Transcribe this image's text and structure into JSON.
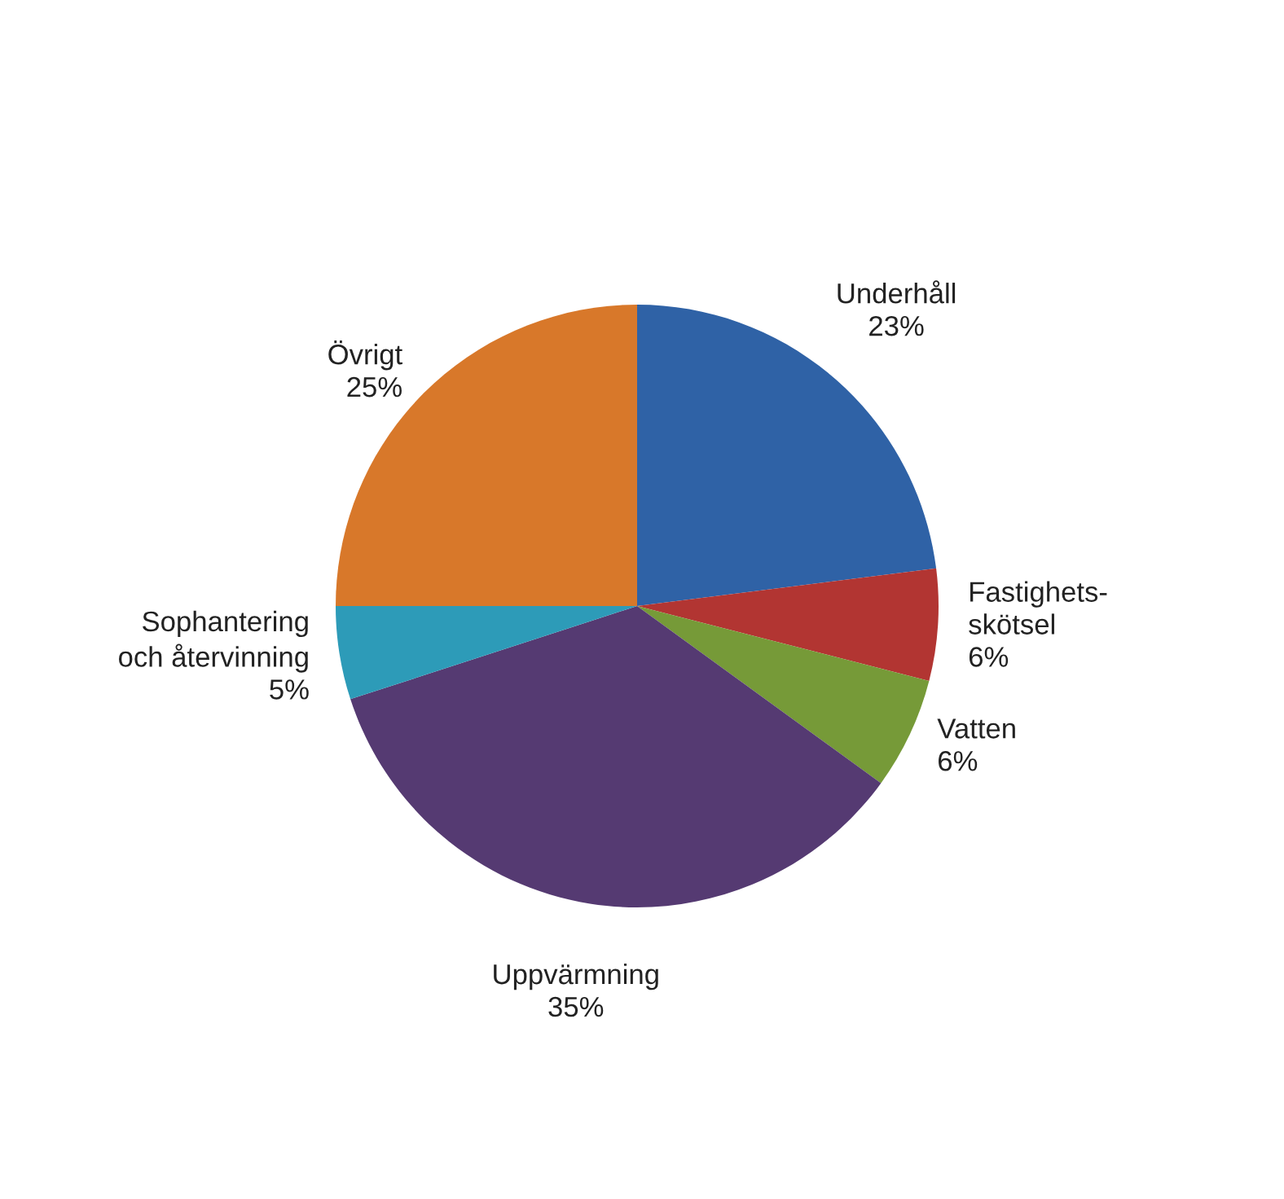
{
  "chart_data": {
    "type": "pie",
    "categories": [
      "Underhåll",
      "Fastighets-\nskötsel",
      "Vatten",
      "Uppvärmning",
      "Sophantering\noch återvinning",
      "Övrigt"
    ],
    "values": [
      23,
      6,
      6,
      35,
      5,
      25
    ],
    "value_labels": [
      "23%",
      "6%",
      "6%",
      "35%",
      "5%",
      "25%"
    ],
    "colors": [
      "#2f62a6",
      "#b23532",
      "#769a38",
      "#553a72",
      "#2d9bb8",
      "#d8782a"
    ],
    "legend": false
  }
}
